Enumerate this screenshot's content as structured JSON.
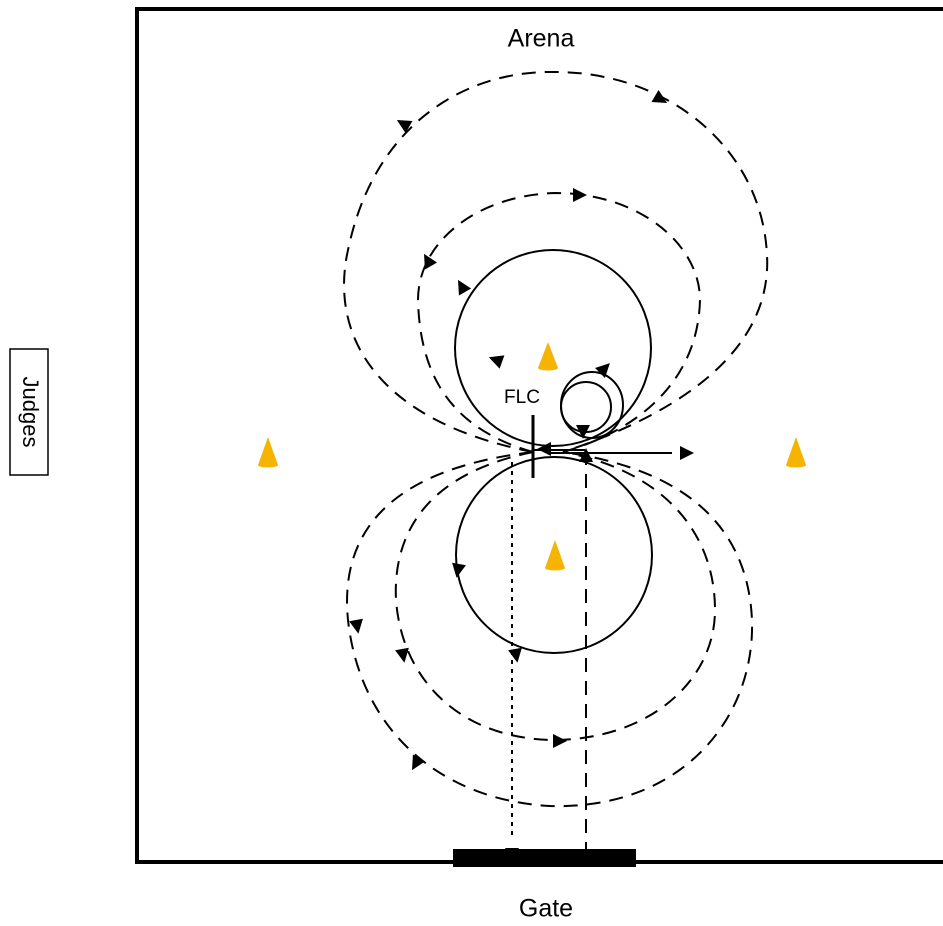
{
  "labels": {
    "arena": "Arena",
    "gate": "Gate",
    "judges": "Judges",
    "flc": "FLC"
  },
  "colors": {
    "cone": "#F5B400",
    "line": "#000000",
    "background": "#FFFFFF"
  },
  "icons": {
    "cone": "traffic-cone-icon",
    "arrowhead": "arrowhead-icon"
  }
}
